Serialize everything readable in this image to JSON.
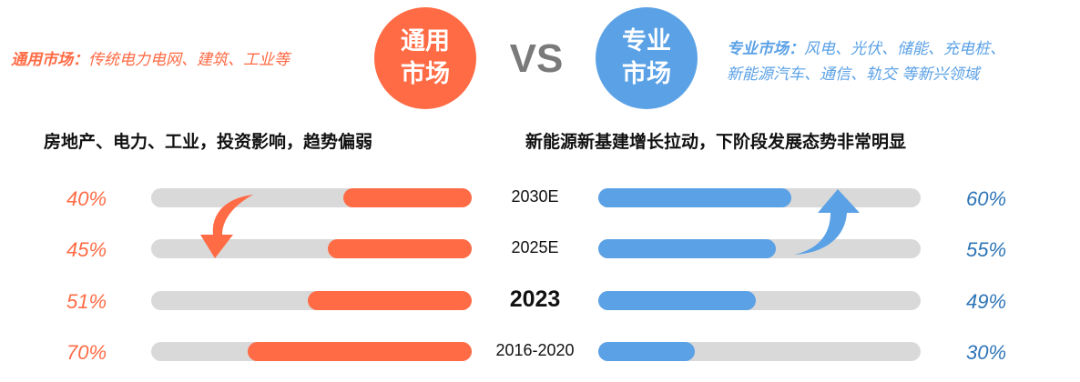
{
  "left_circle": {
    "line1": "通用",
    "line2": "市场",
    "color": "#FF6B45"
  },
  "right_circle": {
    "line1": "专业",
    "line2": "市场",
    "color": "#5BA1E6"
  },
  "vs": "VS",
  "left_desc": {
    "label": "通用市场：",
    "text": "传统电力电网、建筑、工业等"
  },
  "right_desc": {
    "label": "专业市场：",
    "line1": "风电、光伏、储能、充电桩、",
    "line2": "新能源汽车、通信、轨交 等新兴领域"
  },
  "left_headline": "房地产、电力、工业，投资影响，趋势偏弱",
  "right_headline": "新能源新基建增长拉动，下阶段发展态势非常明显",
  "chart_data": {
    "type": "bar",
    "categories": [
      "2030E",
      "2025E",
      "2023",
      "2016-2020"
    ],
    "series": [
      {
        "name": "通用市场",
        "values": [
          40,
          45,
          51,
          70
        ],
        "labels": [
          "40%",
          "45%",
          "51%",
          "70%"
        ],
        "color": "#FF6B45"
      },
      {
        "name": "专业市场",
        "values": [
          60,
          55,
          49,
          30
        ],
        "labels": [
          "60%",
          "55%",
          "49%",
          "30%"
        ],
        "color": "#5BA1E6"
      }
    ],
    "unit": "%",
    "highlight_category": "2023"
  }
}
